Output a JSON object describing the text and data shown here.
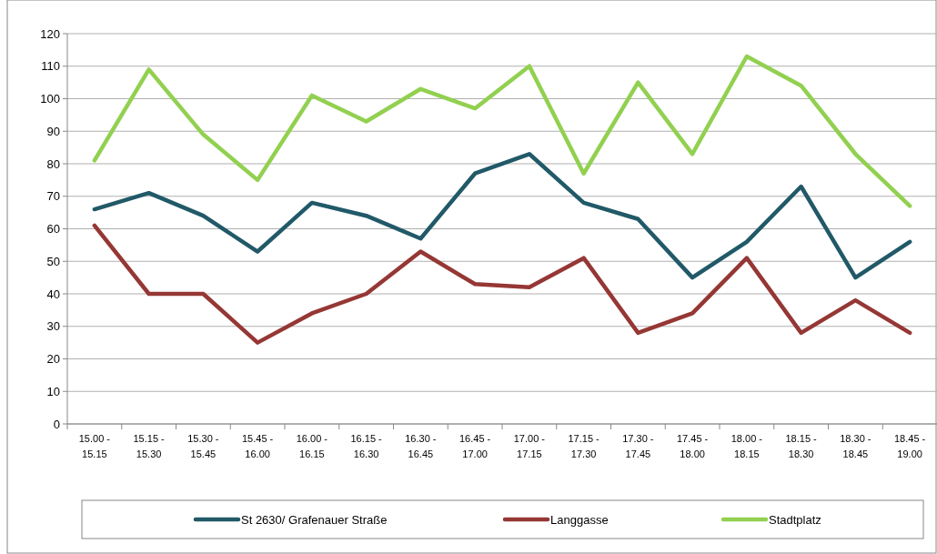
{
  "chart_data": {
    "type": "line",
    "categories": [
      "15.00 - 15.15",
      "15.15 - 15.30",
      "15.30 - 15.45",
      "15.45 - 16.00",
      "16.00 - 16.15",
      "16.15 - 16.30",
      "16.30 - 16.45",
      "16.45 - 17.00",
      "17.00 - 17.15",
      "17.15 - 17.30",
      "17.30 - 17.45",
      "17.45 - 18.00",
      "18.00 - 18.15",
      "18.15 - 18.30",
      "18.30 - 18.45",
      "18.45 - 19.00"
    ],
    "series": [
      {
        "name": "St 2630/ Grafenauer Straße",
        "color": "#215968",
        "values": [
          66,
          71,
          64,
          53,
          68,
          64,
          57,
          77,
          83,
          68,
          63,
          45,
          56,
          73,
          45,
          56
        ]
      },
      {
        "name": "Langgasse",
        "color": "#953735",
        "values": [
          61,
          40,
          40,
          25,
          34,
          40,
          53,
          43,
          42,
          51,
          28,
          34,
          51,
          28,
          38,
          28
        ]
      },
      {
        "name": "Stadtplatz",
        "color": "#92d050",
        "values": [
          81,
          109,
          89,
          75,
          101,
          93,
          103,
          97,
          110,
          77,
          105,
          83,
          113,
          104,
          83,
          67
        ]
      }
    ],
    "ylim": [
      0,
      120
    ],
    "yticks": [
      0,
      10,
      20,
      30,
      40,
      50,
      60,
      70,
      80,
      90,
      100,
      110,
      120
    ],
    "grid": "y",
    "legend": "bottom",
    "marker": "none",
    "line_style": "solid"
  }
}
